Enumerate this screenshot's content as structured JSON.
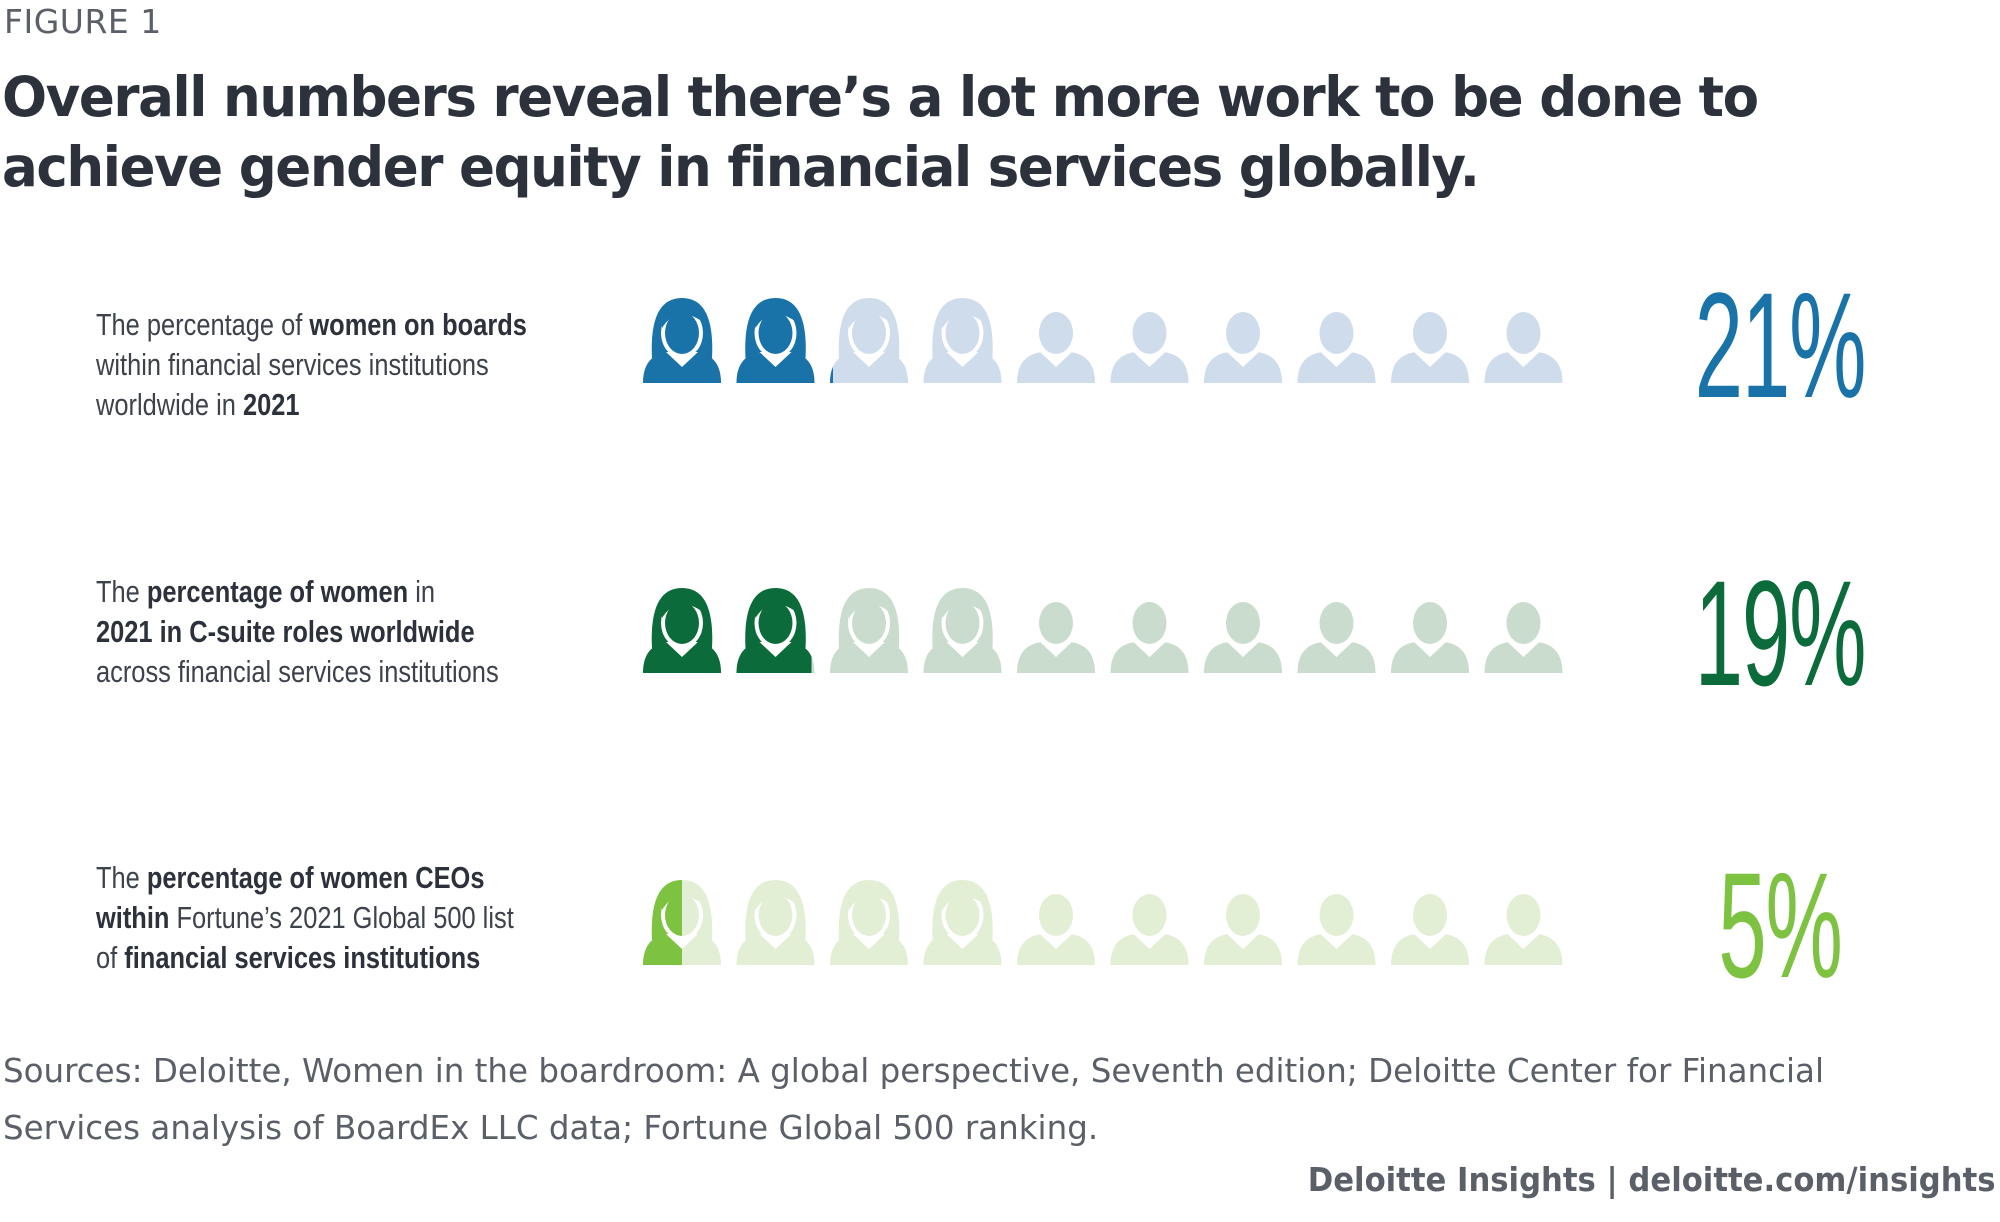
{
  "figure_label": "FIGURE 1",
  "title": "Overall numbers reveal there’s a lot more work to be done to achieve gender equity in financial services globally.",
  "chart_data": {
    "type": "pictogram",
    "units_per_row": 10,
    "rows": [
      {
        "label": {
          "p1": "The percentage of ",
          "b1": "women on boards",
          "p2": "within financial services institutions",
          "p3": "worldwide in ",
          "b2": "2021"
        },
        "value": 21,
        "value_label": "21%",
        "color": "#1a73a8",
        "faded_color": "#cfdceb"
      },
      {
        "label": {
          "p1": "The ",
          "b1": "percentage of women",
          "p2": " in",
          "b2": "2021 in C-suite roles worldwide",
          "p3": "across financial services institutions"
        },
        "value": 19,
        "value_label": "19%",
        "color": "#0b6b3a",
        "faded_color": "#c9dccd"
      },
      {
        "label": {
          "p1": "The ",
          "b1": "percentage of women CEOs",
          "b2": "within",
          "p2": " Fortune’s 2021 Global 500 list",
          "p3": "of ",
          "b3": "financial services institutions"
        },
        "value": 5,
        "value_label": "5%",
        "color": "#7ec242",
        "faded_color": "#e2efd5"
      }
    ]
  },
  "sources": "Sources: Deloitte, Women in the boardroom: A global perspective, Seventh edition; Deloitte Center for Financial Services analysis of BoardEx LLC data; Fortune Global 500 ranking.",
  "brand": "Deloitte Insights | deloitte.com/insights"
}
